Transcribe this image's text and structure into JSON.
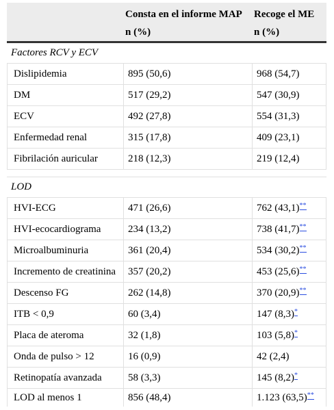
{
  "header": {
    "col2_line1": "Consta en el informe MAP",
    "col2_line2": "n (%)",
    "col3_line1": "Recoge el ME",
    "col3_line2": "n (%)"
  },
  "sections": [
    {
      "title": "Factores RCV y ECV",
      "rows": [
        {
          "label": "Dislipidemia",
          "map": "895 (50,6)",
          "me": "968 (54,7)",
          "mark": ""
        },
        {
          "label": "DM",
          "map": "517 (29,2)",
          "me": "547 (30,9)",
          "mark": ""
        },
        {
          "label": "ECV",
          "map": "492 (27,8)",
          "me": "554 (31,3)",
          "mark": ""
        },
        {
          "label": "Enfermedad renal",
          "map": "315 (17,8)",
          "me": "409 (23,1)",
          "mark": ""
        },
        {
          "label": "Fibrilación auricular",
          "map": "218 (12,3)",
          "me": "219 (12,4)",
          "mark": ""
        }
      ]
    },
    {
      "title": "LOD",
      "rows": [
        {
          "label": "HVI-ECG",
          "map": "471 (26,6)",
          "me": "762 (43,1)",
          "mark": "**"
        },
        {
          "label": "HVI-ecocardiograma",
          "map": "234 (13,2)",
          "me": "738 (41,7)",
          "mark": "**"
        },
        {
          "label": "Microalbuminuria",
          "map": "361 (20,4)",
          "me": "534 (30,2)",
          "mark": "**"
        },
        {
          "label": "Incremento de creatinina",
          "map": "357 (20,2)",
          "me": "453 (25,6)",
          "mark": "**"
        },
        {
          "label": "Descenso FG",
          "map": "262 (14,8)",
          "me": "370 (20,9)",
          "mark": "**"
        },
        {
          "label": "ITB < 0,9",
          "map": "60 (3,4)",
          "me": "147 (8,3)",
          "mark": "*"
        },
        {
          "label": "Placa de ateroma",
          "map": "32 (1,8)",
          "me": "103 (5,8)",
          "mark": "*"
        },
        {
          "label": "Onda de pulso > 12",
          "map": "16 (0,9)",
          "me": "42 (2,4)",
          "mark": ""
        },
        {
          "label": "Retinopatía avanzada",
          "map": "58 (3,3)",
          "me": "145 (8,2)",
          "mark": "*"
        },
        {
          "label": "LOD al menos 1",
          "map": "856 (48,4)",
          "me": "1.123 (63,5)",
          "mark": "**"
        }
      ]
    }
  ]
}
